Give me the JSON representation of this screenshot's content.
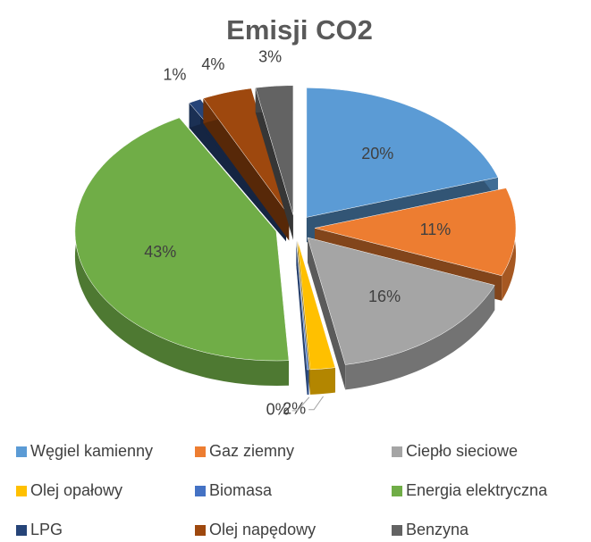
{
  "chart_data": {
    "type": "pie",
    "title": "Emisji CO2",
    "categories": [
      "Węgiel kamienny",
      "Gaz ziemny",
      "Ciepło sieciowe",
      "Olej opałowy",
      "Biomasa",
      "Energia elektryczna",
      "LPG",
      "Olej napędowy",
      "Benzyna"
    ],
    "values": [
      20,
      11,
      16,
      2,
      0,
      43,
      1,
      4,
      3
    ],
    "value_labels": [
      "20%",
      "11%",
      "16%",
      "2%",
      "0%",
      "43%",
      "1%",
      "4%",
      "3%"
    ],
    "colors": [
      "#5b9bd5",
      "#ed7d31",
      "#a5a5a5",
      "#ffc000",
      "#4472c4",
      "#70ad47",
      "#264478",
      "#9e480e",
      "#636363"
    ],
    "legend": "bottom"
  }
}
